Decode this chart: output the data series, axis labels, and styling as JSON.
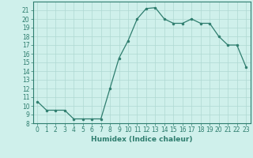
{
  "x": [
    0,
    1,
    2,
    3,
    4,
    5,
    6,
    7,
    8,
    9,
    10,
    11,
    12,
    13,
    14,
    15,
    16,
    17,
    18,
    19,
    20,
    21,
    22,
    23
  ],
  "y": [
    10.5,
    9.5,
    9.5,
    9.5,
    8.5,
    8.5,
    8.5,
    8.5,
    12.0,
    15.5,
    17.5,
    20.0,
    21.2,
    21.3,
    20.0,
    19.5,
    19.5,
    20.0,
    19.5,
    19.5,
    18.0,
    17.0,
    17.0,
    14.5
  ],
  "xlabel": "Humidex (Indice chaleur)",
  "ylim": [
    8,
    22
  ],
  "xlim": [
    -0.5,
    23.5
  ],
  "yticks": [
    8,
    9,
    10,
    11,
    12,
    13,
    14,
    15,
    16,
    17,
    18,
    19,
    20,
    21
  ],
  "xticks": [
    0,
    1,
    2,
    3,
    4,
    5,
    6,
    7,
    8,
    9,
    10,
    11,
    12,
    13,
    14,
    15,
    16,
    17,
    18,
    19,
    20,
    21,
    22,
    23
  ],
  "line_color": "#2e7d6e",
  "marker_color": "#2e7d6e",
  "bg_color": "#cff0eb",
  "grid_color": "#aed8d2",
  "label_fontsize": 6.5,
  "tick_fontsize": 5.5
}
